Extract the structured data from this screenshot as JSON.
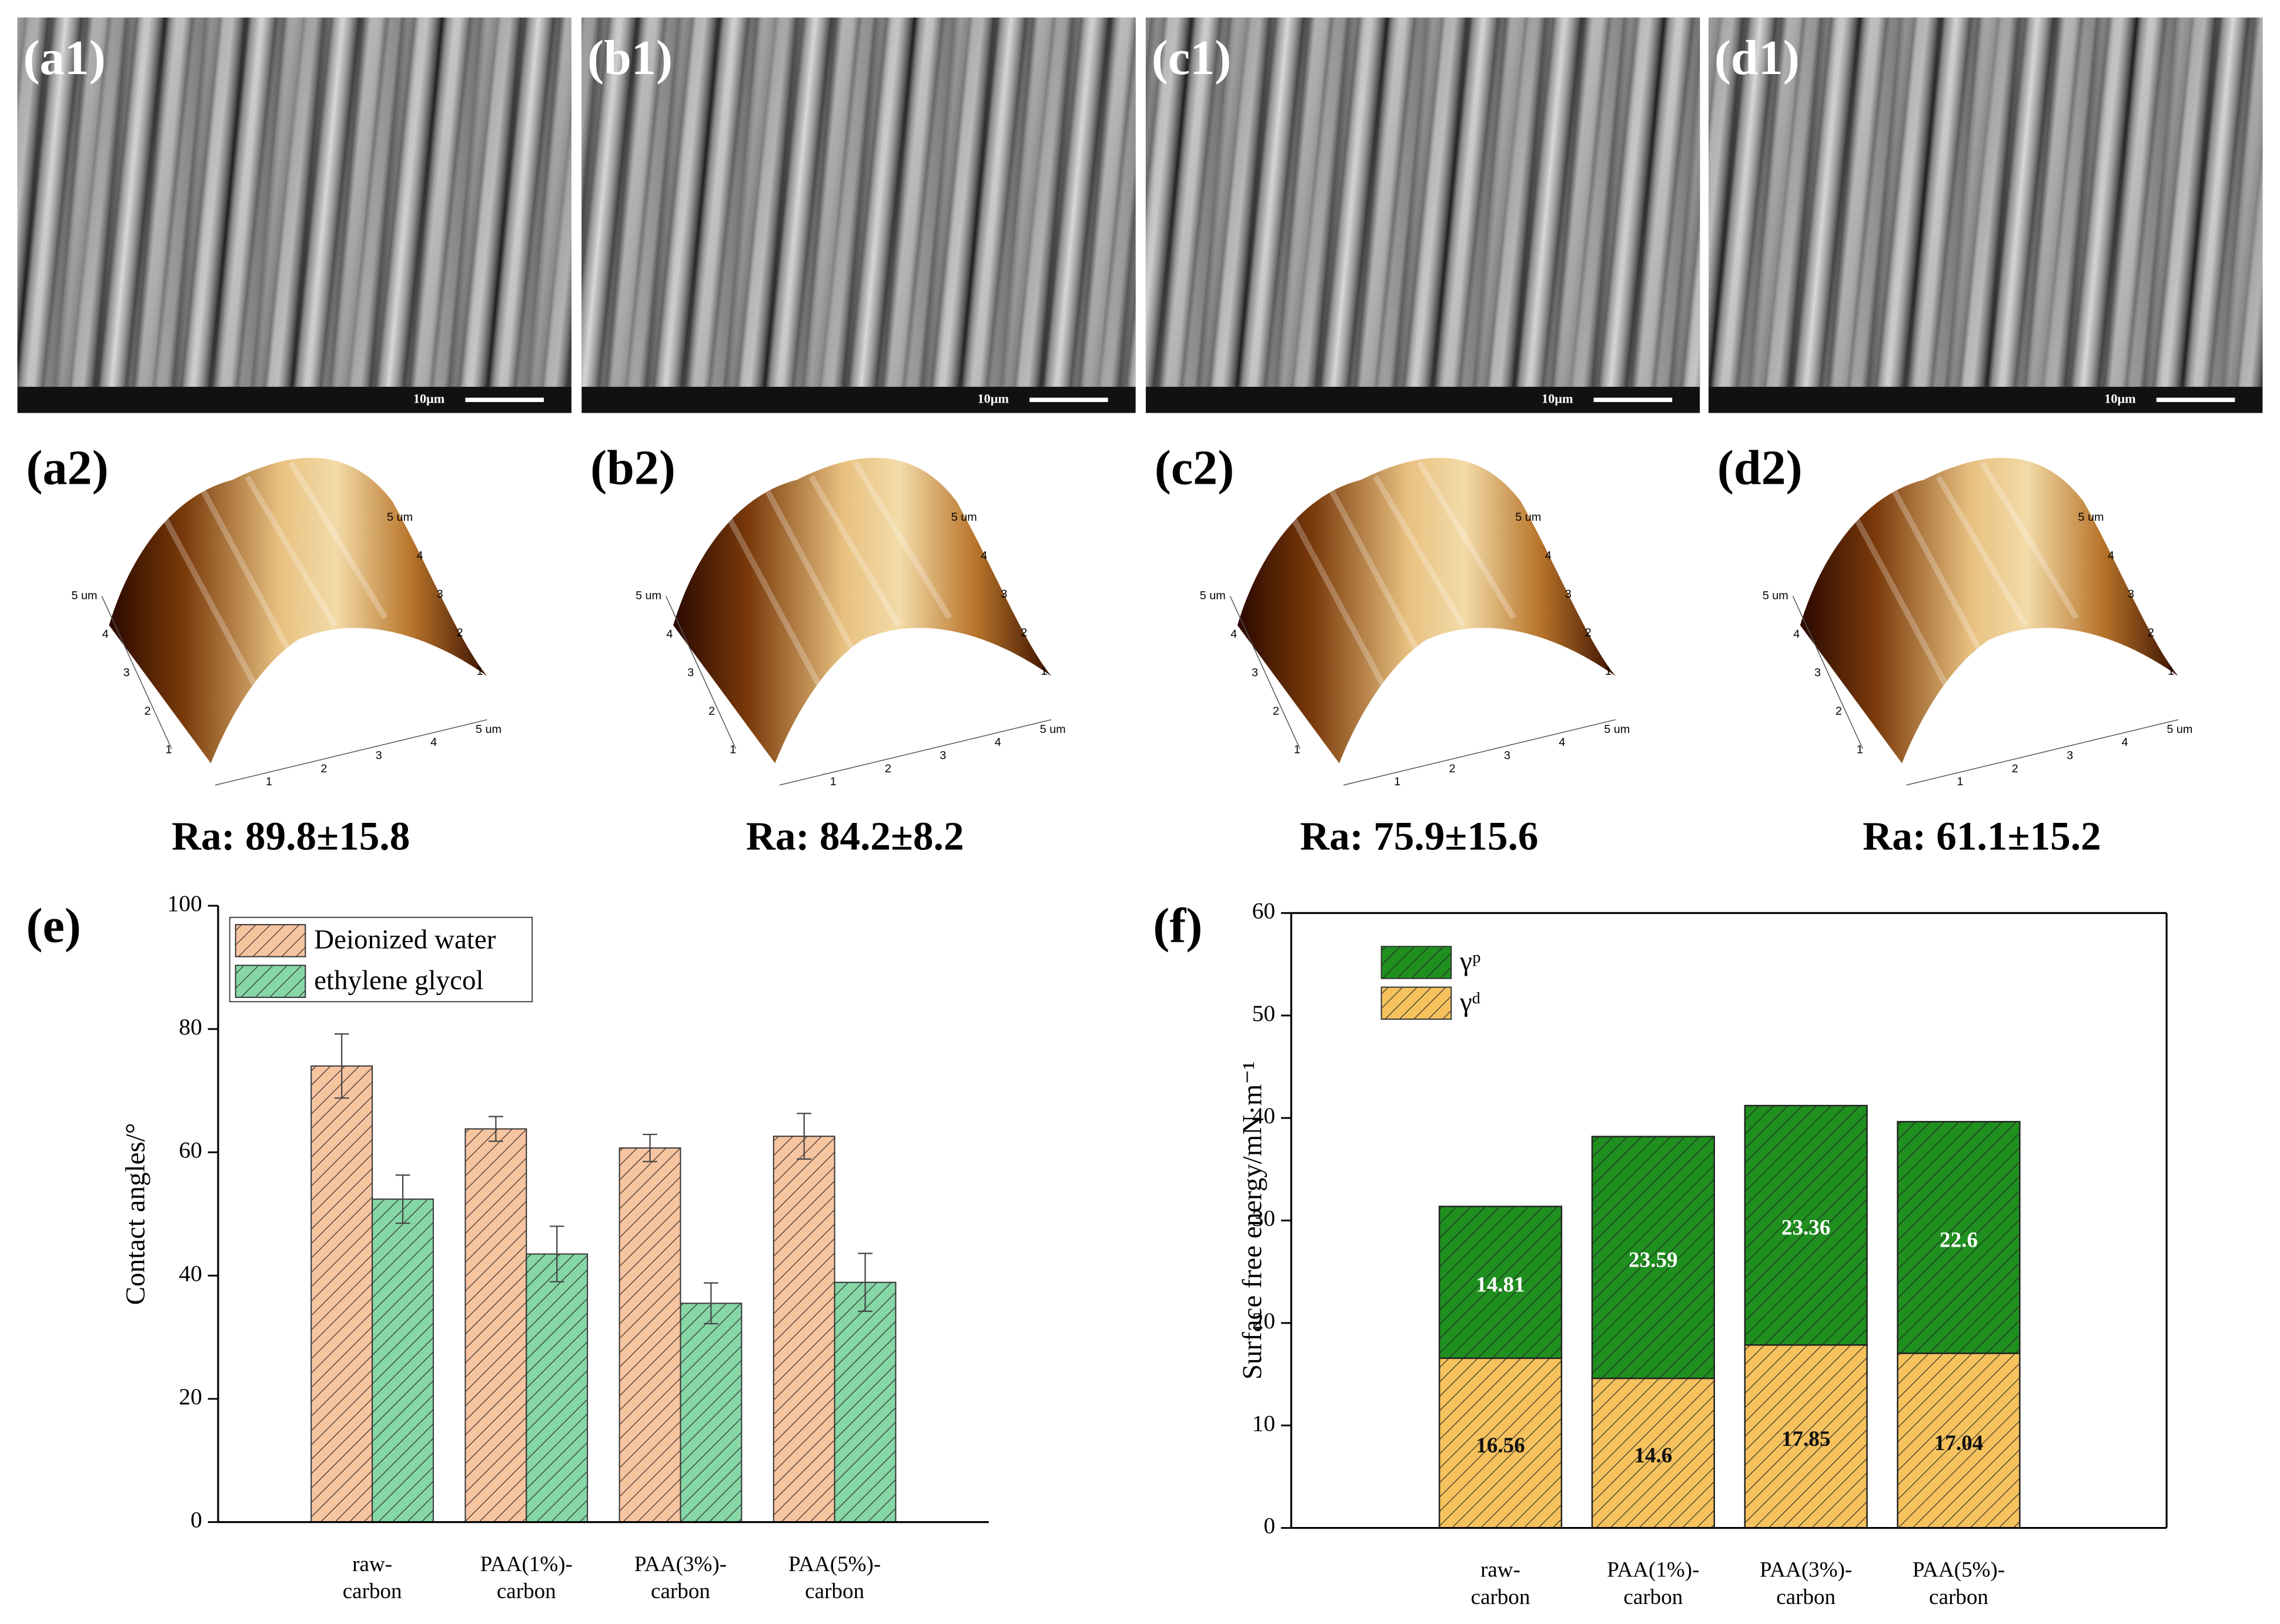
{
  "panels": {
    "sem": [
      {
        "label": "(a1)",
        "scale_bar": "10μm"
      },
      {
        "label": "(b1)",
        "scale_bar": "10μm"
      },
      {
        "label": "(c1)",
        "scale_bar": "10μm"
      },
      {
        "label": "(d1)",
        "scale_bar": "10μm"
      }
    ],
    "afm": [
      {
        "label": "(a2)",
        "roughness": "Ra: 89.8±15.8",
        "left_axis": [
          "5 um",
          "4",
          "3",
          "2",
          "1"
        ],
        "bottom_axis": [
          "1",
          "2",
          "3",
          "4",
          "5 um"
        ],
        "right_axis": [
          "5 um",
          "4",
          "3",
          "2",
          "1"
        ]
      },
      {
        "label": "(b2)",
        "roughness": "Ra: 84.2±8.2",
        "left_axis": [
          "5 um",
          "4",
          "3",
          "2",
          "1"
        ],
        "bottom_axis": [
          "1",
          "2",
          "3",
          "4",
          "5 um"
        ],
        "right_axis": [
          "5 um",
          "4",
          "3",
          "2",
          "1"
        ]
      },
      {
        "label": "(c2)",
        "roughness": "Ra: 75.9±15.6",
        "left_axis": [
          "5 um",
          "4",
          "3",
          "2",
          "1"
        ],
        "bottom_axis": [
          "1",
          "2",
          "3",
          "4",
          "5 um"
        ],
        "right_axis": [
          "5 um",
          "4",
          "3",
          "2",
          "1"
        ]
      },
      {
        "label": "(d2)",
        "roughness": "Ra: 61.1±15.2",
        "left_axis": [
          "5 um",
          "4",
          "3",
          "2",
          "1"
        ],
        "bottom_axis": [
          "1",
          "2",
          "3",
          "4",
          "5 um"
        ],
        "right_axis": [
          "5 um",
          "4",
          "3",
          "2",
          "1"
        ]
      }
    ]
  },
  "chart_data": [
    {
      "type": "bar",
      "label": "(e)",
      "ylabel": "Contact angles/°",
      "categories": [
        "raw-\ncarbon",
        "PAA(1%)-\ncarbon",
        "PAA(3%)-\ncarbon",
        "PAA(5%)-\ncarbon"
      ],
      "series": [
        {
          "name": "Deionized water",
          "color": "#f7c4a0",
          "values": [
            74,
            63.8,
            60.7,
            62.6
          ],
          "errors": [
            5.2,
            2,
            2.2,
            3.7
          ]
        },
        {
          "name": "ethylene glycol",
          "color": "#86d6a6",
          "values": [
            52.4,
            43.5,
            35.5,
            38.9
          ],
          "errors": [
            3.9,
            4.5,
            3.3,
            4.7
          ]
        }
      ],
      "ylim": [
        0,
        100
      ],
      "yticks": [
        0,
        20,
        40,
        60,
        80,
        100
      ],
      "legend": "upper left",
      "hatch": true
    },
    {
      "type": "stacked_bar",
      "label": "(f)",
      "ylabel": "Surface free energy/mN·m⁻¹",
      "categories": [
        "raw-\ncarbon",
        "PAA(1%)-\ncarbon",
        "PAA(3%)-\ncarbon",
        "PAA(5%)-\ncarbon"
      ],
      "series": [
        {
          "name": "γᵈ",
          "color": "#f5c25e",
          "values": [
            16.56,
            14.6,
            17.85,
            17.04
          ]
        },
        {
          "name": "γᵖ",
          "color": "#1f8f1f",
          "values": [
            14.81,
            23.59,
            23.36,
            22.6
          ]
        }
      ],
      "ylim": [
        0,
        60
      ],
      "yticks": [
        0,
        10,
        20,
        30,
        40,
        50,
        60
      ],
      "legend": "upper left",
      "hatch": true
    }
  ]
}
